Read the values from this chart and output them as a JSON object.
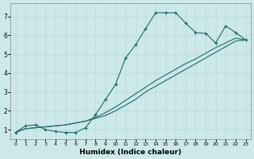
{
  "xlabel": "Humidex (Indice chaleur)",
  "bg_color": "#cce8e8",
  "grid_color": "#b8d8d8",
  "line_color": "#1a6b6b",
  "xlim": [
    -0.5,
    23.5
  ],
  "ylim": [
    0.5,
    7.7
  ],
  "xticks": [
    0,
    1,
    2,
    3,
    4,
    5,
    6,
    7,
    8,
    9,
    10,
    11,
    12,
    13,
    14,
    15,
    16,
    17,
    18,
    19,
    20,
    21,
    22,
    23
  ],
  "yticks": [
    1,
    2,
    3,
    4,
    5,
    6,
    7
  ],
  "curve_x": [
    0,
    1,
    2,
    3,
    4,
    5,
    6,
    7,
    8,
    9,
    10,
    11,
    12,
    13,
    14,
    15,
    16,
    17,
    18,
    19,
    20,
    21,
    22,
    23
  ],
  "curve_y": [
    0.85,
    1.2,
    1.25,
    1.0,
    0.9,
    0.85,
    0.85,
    1.1,
    1.8,
    2.6,
    3.4,
    4.8,
    5.5,
    6.35,
    7.2,
    7.2,
    7.2,
    6.65,
    6.15,
    6.1,
    5.6,
    6.5,
    6.15,
    5.75
  ],
  "diag1_x": [
    0,
    1,
    2,
    3,
    4,
    5,
    6,
    7,
    8,
    9,
    10,
    11,
    12,
    13,
    14,
    15,
    16,
    17,
    18,
    19,
    20,
    21,
    22,
    23
  ],
  "diag1_y": [
    0.85,
    1.05,
    1.1,
    1.15,
    1.2,
    1.25,
    1.35,
    1.45,
    1.6,
    1.75,
    2.0,
    2.3,
    2.6,
    3.0,
    3.3,
    3.6,
    3.9,
    4.2,
    4.5,
    4.8,
    5.1,
    5.4,
    5.7,
    5.75
  ],
  "diag2_x": [
    0,
    1,
    2,
    3,
    4,
    5,
    6,
    7,
    8,
    9,
    10,
    11,
    12,
    13,
    14,
    15,
    16,
    17,
    18,
    19,
    20,
    21,
    22,
    23
  ],
  "diag2_y": [
    0.85,
    1.05,
    1.1,
    1.15,
    1.2,
    1.25,
    1.35,
    1.45,
    1.65,
    1.9,
    2.2,
    2.55,
    2.9,
    3.25,
    3.6,
    3.9,
    4.2,
    4.5,
    4.75,
    5.05,
    5.35,
    5.6,
    5.85,
    5.75
  ]
}
